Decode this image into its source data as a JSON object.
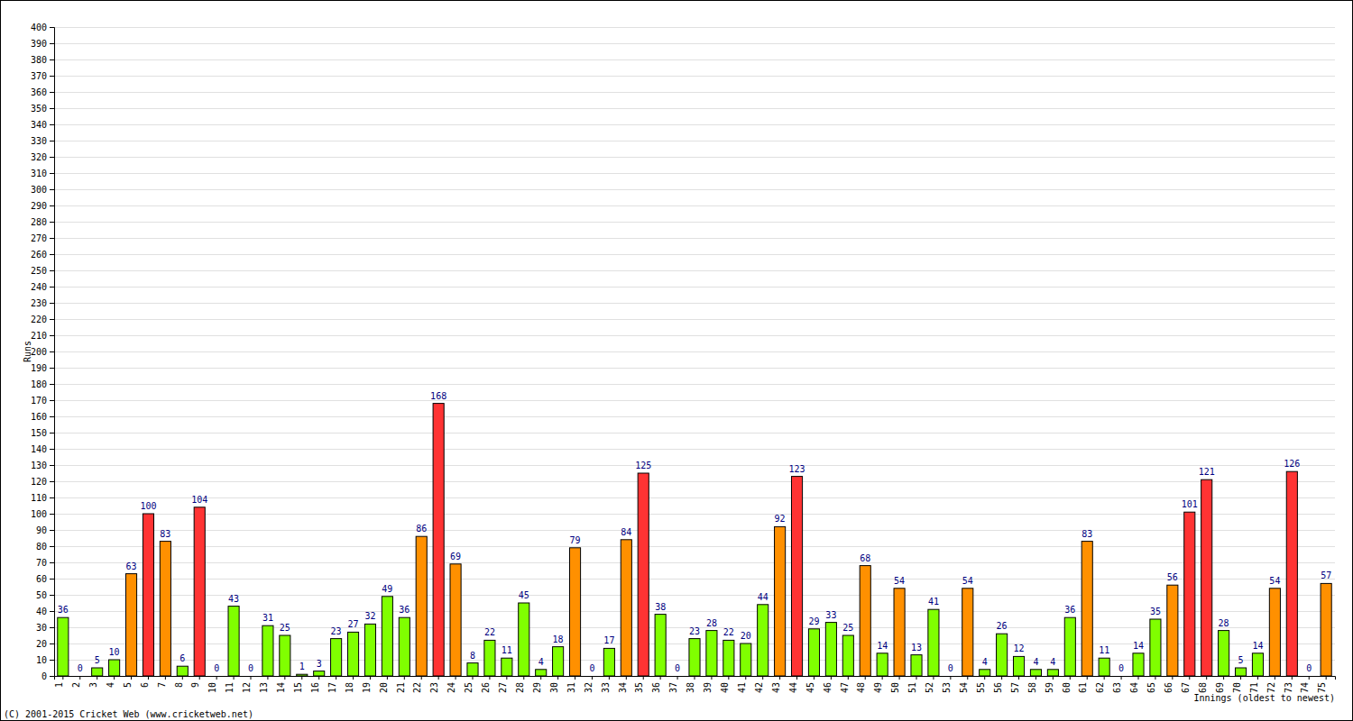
{
  "chart_data": {
    "type": "bar",
    "x_label": "Innings (oldest to newest)",
    "y_label": "Runs",
    "annotations": [
      "(C) 2001-2015 Cricket Web (www.cricketweb.net)"
    ],
    "categories": [
      "1",
      "2",
      "3",
      "4",
      "5",
      "6",
      "7",
      "8",
      "9",
      "10",
      "11",
      "12",
      "13",
      "14",
      "15",
      "16",
      "17",
      "18",
      "19",
      "20",
      "21",
      "22",
      "23",
      "24",
      "25",
      "26",
      "27",
      "28",
      "29",
      "30",
      "31",
      "32",
      "33",
      "34",
      "35",
      "36",
      "37",
      "38",
      "39",
      "40",
      "41",
      "42",
      "43",
      "44",
      "45",
      "46",
      "47",
      "48",
      "49",
      "50",
      "51",
      "52",
      "53",
      "54",
      "55",
      "56",
      "57",
      "58",
      "59",
      "60",
      "61",
      "62",
      "63",
      "64",
      "65",
      "66",
      "67",
      "68",
      "69",
      "70",
      "71",
      "72",
      "73",
      "74",
      "75"
    ],
    "values": [
      36,
      0,
      5,
      10,
      63,
      100,
      83,
      6,
      104,
      0,
      43,
      0,
      31,
      25,
      1,
      3,
      23,
      27,
      32,
      49,
      36,
      86,
      168,
      69,
      8,
      22,
      11,
      45,
      4,
      18,
      79,
      0,
      17,
      84,
      125,
      38,
      0,
      23,
      28,
      22,
      20,
      44,
      92,
      123,
      29,
      33,
      25,
      68,
      14,
      54,
      13,
      41,
      0,
      54,
      4,
      26,
      12,
      4,
      4,
      36,
      83,
      11,
      0,
      14,
      35,
      56,
      101,
      121,
      28,
      5,
      14,
      54,
      126,
      0,
      57
    ],
    "colors": [
      "#80ff00",
      "#80ff00",
      "#80ff00",
      "#80ff00",
      "#ff9000",
      "#ff3333",
      "#ff9000",
      "#80ff00",
      "#ff3333",
      "#80ff00",
      "#80ff00",
      "#80ff00",
      "#80ff00",
      "#80ff00",
      "#80ff00",
      "#80ff00",
      "#80ff00",
      "#80ff00",
      "#80ff00",
      "#80ff00",
      "#80ff00",
      "#ff9000",
      "#ff3333",
      "#ff9000",
      "#80ff00",
      "#80ff00",
      "#80ff00",
      "#80ff00",
      "#80ff00",
      "#80ff00",
      "#ff9000",
      "#80ff00",
      "#80ff00",
      "#ff9000",
      "#ff3333",
      "#80ff00",
      "#80ff00",
      "#80ff00",
      "#80ff00",
      "#80ff00",
      "#80ff00",
      "#80ff00",
      "#ff9000",
      "#ff3333",
      "#80ff00",
      "#80ff00",
      "#80ff00",
      "#ff9000",
      "#80ff00",
      "#ff9000",
      "#80ff00",
      "#80ff00",
      "#80ff00",
      "#ff9000",
      "#80ff00",
      "#80ff00",
      "#80ff00",
      "#80ff00",
      "#80ff00",
      "#80ff00",
      "#ff9000",
      "#80ff00",
      "#80ff00",
      "#80ff00",
      "#80ff00",
      "#ff9000",
      "#ff3333",
      "#ff3333",
      "#80ff00",
      "#80ff00",
      "#80ff00",
      "#ff9000",
      "#ff3333",
      "#80ff00",
      "#ff9000"
    ],
    "ylim": [
      0,
      400
    ],
    "yticks": [
      0,
      10,
      20,
      30,
      40,
      50,
      60,
      70,
      80,
      90,
      100,
      110,
      120,
      130,
      140,
      150,
      160,
      170,
      180,
      190,
      200,
      210,
      220,
      230,
      240,
      250,
      260,
      270,
      280,
      290,
      300,
      310,
      320,
      330,
      340,
      350,
      360,
      370,
      380,
      390,
      400
    ],
    "grid": true,
    "data_labels": true
  }
}
